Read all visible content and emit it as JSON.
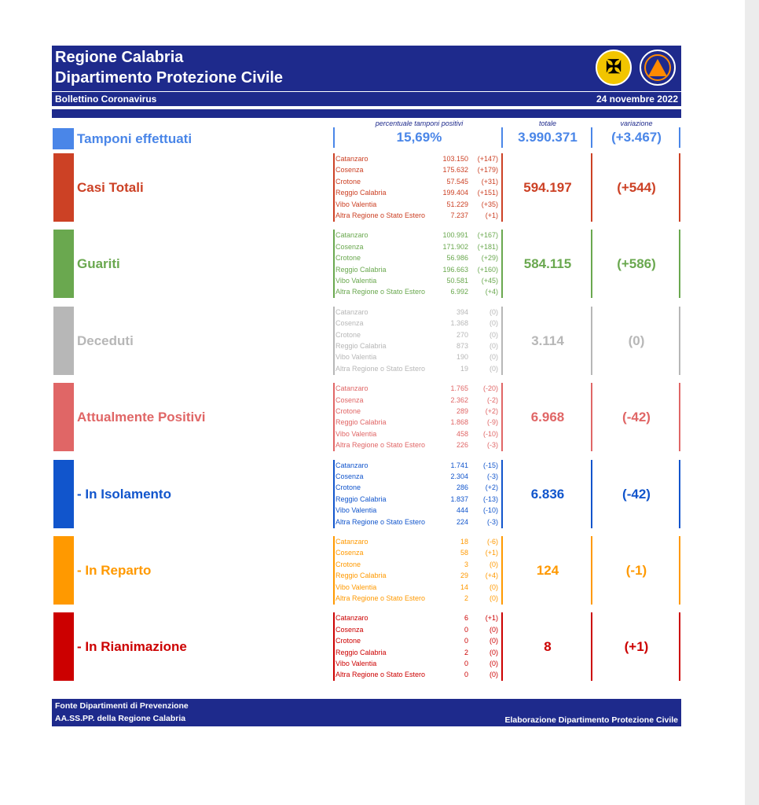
{
  "header": {
    "title_line1": "Regione Calabria",
    "title_line2": "Dipartimento Protezione Civile",
    "subtitle": "Bollettino Coronavirus",
    "date": "24 novembre 2022",
    "logo2_text": "PROTEZIONE CIVILE"
  },
  "columns": {
    "percent_header": "percentuale tamponi positivi",
    "total_header": "totale",
    "variation_header": "variazione"
  },
  "tamponi": {
    "label": "Tamponi effettuati",
    "percent": "15,69%",
    "total": "3.990.371",
    "variation": "(+3.467)",
    "color": "#4a86e8"
  },
  "sections": [
    {
      "label": "Casi Totali",
      "color": "#cc4125",
      "total": "594.197",
      "variation": "(+544)",
      "provinces": [
        {
          "name": "Catanzaro",
          "value": "103.150",
          "delta": "(+147)"
        },
        {
          "name": "Cosenza",
          "value": "175.632",
          "delta": "(+179)"
        },
        {
          "name": "Crotone",
          "value": "57.545",
          "delta": "(+31)"
        },
        {
          "name": "Reggio Calabria",
          "value": "199.404",
          "delta": "(+151)"
        },
        {
          "name": "Vibo Valentia",
          "value": "51.229",
          "delta": "(+35)"
        },
        {
          "name": "Altra Regione o Stato Estero",
          "value": "7.237",
          "delta": "(+1)"
        }
      ]
    },
    {
      "label": "Guariti",
      "color": "#6aa84f",
      "total": "584.115",
      "variation": "(+586)",
      "provinces": [
        {
          "name": "Catanzaro",
          "value": "100.991",
          "delta": "(+167)"
        },
        {
          "name": "Cosenza",
          "value": "171.902",
          "delta": "(+181)"
        },
        {
          "name": "Crotone",
          "value": "56.986",
          "delta": "(+29)"
        },
        {
          "name": "Reggio Calabria",
          "value": "196.663",
          "delta": "(+160)"
        },
        {
          "name": "Vibo Valentia",
          "value": "50.581",
          "delta": "(+45)"
        },
        {
          "name": "Altra Regione o Stato Estero",
          "value": "6.992",
          "delta": "(+4)"
        }
      ]
    },
    {
      "label": "Deceduti",
      "color": "#b7b7b7",
      "total": "3.114",
      "variation": "(0)",
      "provinces": [
        {
          "name": "Catanzaro",
          "value": "394",
          "delta": "(0)"
        },
        {
          "name": "Cosenza",
          "value": "1.368",
          "delta": "(0)"
        },
        {
          "name": "Crotone",
          "value": "270",
          "delta": "(0)"
        },
        {
          "name": "Reggio Calabria",
          "value": "873",
          "delta": "(0)"
        },
        {
          "name": "Vibo Valentia",
          "value": "190",
          "delta": "(0)"
        },
        {
          "name": "Altra Regione o Stato Estero",
          "value": "19",
          "delta": "(0)"
        }
      ]
    },
    {
      "label": "Attualmente Positivi",
      "color": "#e06666",
      "total": "6.968",
      "variation": "(-42)",
      "provinces": [
        {
          "name": "Catanzaro",
          "value": "1.765",
          "delta": "(-20)"
        },
        {
          "name": "Cosenza",
          "value": "2.362",
          "delta": "(-2)"
        },
        {
          "name": "Crotone",
          "value": "289",
          "delta": "(+2)"
        },
        {
          "name": "Reggio Calabria",
          "value": "1.868",
          "delta": "(-9)"
        },
        {
          "name": "Vibo Valentia",
          "value": "458",
          "delta": "(-10)"
        },
        {
          "name": "Altra Regione o Stato Estero",
          "value": "226",
          "delta": "(-3)"
        }
      ]
    },
    {
      "label": " - In Isolamento",
      "color": "#1155cc",
      "total": "6.836",
      "variation": "(-42)",
      "provinces": [
        {
          "name": "Catanzaro",
          "value": "1.741",
          "delta": "(-15)"
        },
        {
          "name": "Cosenza",
          "value": "2.304",
          "delta": "(-3)"
        },
        {
          "name": "Crotone",
          "value": "286",
          "delta": "(+2)"
        },
        {
          "name": "Reggio Calabria",
          "value": "1.837",
          "delta": "(-13)"
        },
        {
          "name": "Vibo Valentia",
          "value": "444",
          "delta": "(-10)"
        },
        {
          "name": "Altra Regione o Stato Estero",
          "value": "224",
          "delta": "(-3)"
        }
      ]
    },
    {
      "label": " - In Reparto",
      "color": "#ff9900",
      "total": "124",
      "variation": "(-1)",
      "provinces": [
        {
          "name": "Catanzaro",
          "value": "18",
          "delta": "(-6)"
        },
        {
          "name": "Cosenza",
          "value": "58",
          "delta": "(+1)"
        },
        {
          "name": "Crotone",
          "value": "3",
          "delta": "(0)"
        },
        {
          "name": "Reggio Calabria",
          "value": "29",
          "delta": "(+4)"
        },
        {
          "name": "Vibo Valentia",
          "value": "14",
          "delta": "(0)"
        },
        {
          "name": "Altra Regione o Stato Estero",
          "value": "2",
          "delta": "(0)"
        }
      ]
    },
    {
      "label": " - In Rianimazione",
      "color": "#cc0000",
      "total": "8",
      "variation": "(+1)",
      "provinces": [
        {
          "name": "Catanzaro",
          "value": "6",
          "delta": "(+1)"
        },
        {
          "name": "Cosenza",
          "value": "0",
          "delta": "(0)"
        },
        {
          "name": "Crotone",
          "value": "0",
          "delta": "(0)"
        },
        {
          "name": "Reggio Calabria",
          "value": "2",
          "delta": "(0)"
        },
        {
          "name": "Vibo Valentia",
          "value": "0",
          "delta": "(0)"
        },
        {
          "name": "Altra Regione o Stato Estero",
          "value": "0",
          "delta": "(0)"
        }
      ]
    }
  ],
  "footer": {
    "source_line1": "Fonte Dipartimenti di Prevenzione",
    "source_line2": "AA.SS.PP.  della Regione Calabria",
    "credit": "Elaborazione Dipartimento Protezione Civile"
  }
}
